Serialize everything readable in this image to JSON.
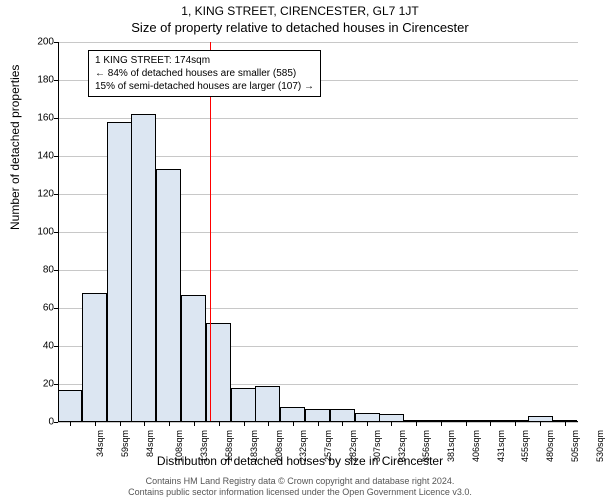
{
  "title": {
    "address": "1, KING STREET, CIRENCESTER, GL7 1JT",
    "subtitle": "Size of property relative to detached houses in Cirencester"
  },
  "chart": {
    "type": "histogram",
    "ylabel": "Number of detached properties",
    "xlabel": "Distribution of detached houses by size in Cirencester",
    "ylim": [
      0,
      200
    ],
    "ytick_step": 20,
    "bar_fill": "#dce6f2",
    "bar_stroke": "#000000",
    "bar_stroke_width": 0.5,
    "grid_color": "#c8c8c8",
    "background": "#ffffff",
    "marker_color": "#ff0000",
    "marker_x_value": 174,
    "annotation": {
      "line1": "1 KING STREET: 174sqm",
      "line2": "← 84% of detached houses are smaller (585)",
      "line3": "15% of semi-detached houses are larger (107) →"
    },
    "x_ticks": [
      "34sqm",
      "59sqm",
      "84sqm",
      "108sqm",
      "133sqm",
      "158sqm",
      "183sqm",
      "208sqm",
      "232sqm",
      "257sqm",
      "282sqm",
      "307sqm",
      "332sqm",
      "356sqm",
      "381sqm",
      "406sqm",
      "431sqm",
      "455sqm",
      "480sqm",
      "505sqm",
      "530sqm"
    ],
    "bars": [
      {
        "x": 34,
        "h": 17
      },
      {
        "x": 59,
        "h": 68
      },
      {
        "x": 84,
        "h": 158
      },
      {
        "x": 108,
        "h": 162
      },
      {
        "x": 133,
        "h": 133
      },
      {
        "x": 158,
        "h": 67
      },
      {
        "x": 183,
        "h": 52
      },
      {
        "x": 208,
        "h": 18
      },
      {
        "x": 232,
        "h": 19
      },
      {
        "x": 257,
        "h": 8
      },
      {
        "x": 282,
        "h": 7
      },
      {
        "x": 307,
        "h": 7
      },
      {
        "x": 332,
        "h": 5
      },
      {
        "x": 356,
        "h": 4
      },
      {
        "x": 381,
        "h": 0
      },
      {
        "x": 406,
        "h": 0
      },
      {
        "x": 431,
        "h": 0
      },
      {
        "x": 455,
        "h": 1
      },
      {
        "x": 480,
        "h": 0
      },
      {
        "x": 505,
        "h": 3
      },
      {
        "x": 530,
        "h": 1
      }
    ],
    "bin_width_data": 25,
    "x_domain": [
      22,
      543
    ]
  },
  "footer": {
    "line1": "Contains HM Land Registry data © Crown copyright and database right 2024.",
    "line2": "Contains public sector information licensed under the Open Government Licence v3.0."
  }
}
